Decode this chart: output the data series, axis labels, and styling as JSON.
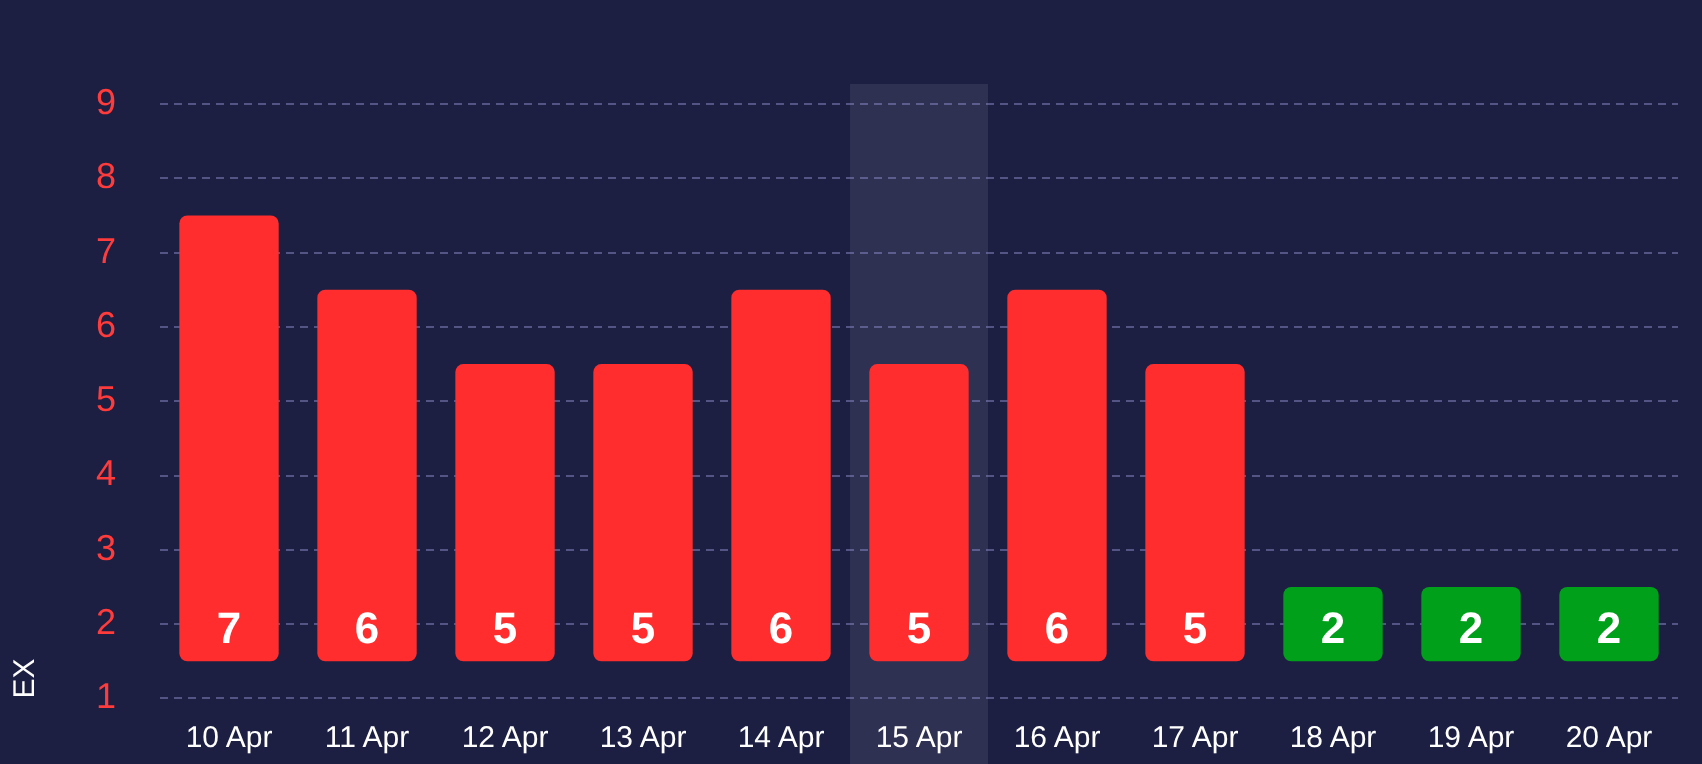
{
  "chart_data": {
    "type": "bar",
    "ylabel": "EX",
    "categories": [
      "10 Apr",
      "11 Apr",
      "12 Apr",
      "13 Apr",
      "14 Apr",
      "15 Apr",
      "16 Apr",
      "17 Apr",
      "18 Apr",
      "19 Apr",
      "20 Apr"
    ],
    "base": [
      1.5,
      1.5,
      1.5,
      1.5,
      1.5,
      1.5,
      1.5,
      1.5,
      1.5,
      1.5,
      1.5
    ],
    "values": [
      6,
      5,
      4,
      4,
      5,
      4,
      5,
      4,
      1,
      1,
      1
    ],
    "value_labels": [
      "7",
      "6",
      "5",
      "5",
      "6",
      "5",
      "6",
      "5",
      "2",
      "2",
      "2"
    ],
    "colors": [
      "#ff2d2d",
      "#ff2d2d",
      "#ff2d2d",
      "#ff2d2d",
      "#ff2d2d",
      "#ff2d2d",
      "#ff2d2d",
      "#ff2d2d",
      "#00a01a",
      "#00a01a",
      "#00a01a"
    ],
    "ylim": [
      1,
      9
    ],
    "yticks": [
      1,
      2,
      3,
      4,
      5,
      6,
      7,
      8,
      9
    ],
    "bands": [
      {
        "axis": "x",
        "from": "15 Apr",
        "to": "15 Apr",
        "color": "#2e3152"
      }
    ],
    "grid": "y",
    "line_style": "dashed",
    "legend": false
  }
}
